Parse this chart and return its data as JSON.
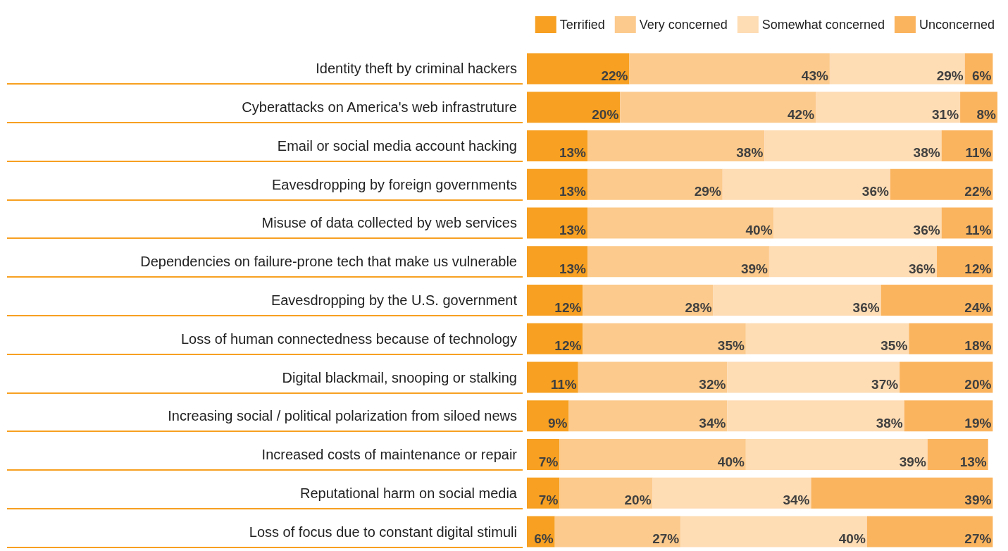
{
  "chart_data": {
    "type": "bar",
    "orientation": "horizontal",
    "stacked": true,
    "legend": "top right",
    "categories": [
      "Identity theft by criminal hackers",
      "Cyberattacks on America's web infrastruture",
      "Email or social media account hacking",
      "Eavesdropping by foreign governments",
      "Misuse of data collected by web services",
      "Dependencies on failure-prone tech that make us vulnerable",
      "Eavesdropping by the U.S. government",
      "Loss of human connectedness because of technology",
      "Digital blackmail, snooping or stalking",
      "Increasing social / political polarization from siloed news",
      "Increased costs of maintenance or repair",
      "Reputational harm on social media",
      "Loss of focus due to constant digital stimuli"
    ],
    "series": [
      {
        "name": "Terrified",
        "color": "#f7a021",
        "values": [
          22,
          20,
          13,
          13,
          13,
          13,
          12,
          12,
          11,
          9,
          7,
          7,
          6
        ],
        "value_labels": [
          "22%",
          "20%",
          "13%",
          "13%",
          "13%",
          "13%",
          "12%",
          "12%",
          "11%",
          "9%",
          "7%",
          "7%",
          "6%"
        ]
      },
      {
        "name": "Very concerned",
        "color": "#fcca8c",
        "values": [
          43,
          42,
          38,
          29,
          40,
          39,
          28,
          35,
          32,
          34,
          40,
          20,
          27
        ],
        "value_labels": [
          "43%",
          "42%",
          "38%",
          "29%",
          "40%",
          "39%",
          "28%",
          "35%",
          "32%",
          "34%",
          "40%",
          "20%",
          "27%"
        ]
      },
      {
        "name": "Somewhat concerned",
        "color": "#fedcb4",
        "values": [
          29,
          31,
          38,
          36,
          36,
          36,
          36,
          35,
          37,
          38,
          39,
          34,
          40
        ],
        "value_labels": [
          "29%",
          "31%",
          "38%",
          "36%",
          "36%",
          "36%",
          "36%",
          "35%",
          "37%",
          "38%",
          "39%",
          "34%",
          "40%"
        ]
      },
      {
        "name": "Unconcerned",
        "color": "#fbb45e",
        "values": [
          6,
          8,
          11,
          22,
          11,
          12,
          24,
          18,
          20,
          19,
          13,
          39,
          27
        ],
        "value_labels": [
          "6%",
          "8%",
          "11%",
          "22%",
          "11%",
          "12%",
          "24%",
          "18%",
          "20%",
          "19%",
          "13%",
          "39%",
          "27%"
        ]
      }
    ]
  }
}
